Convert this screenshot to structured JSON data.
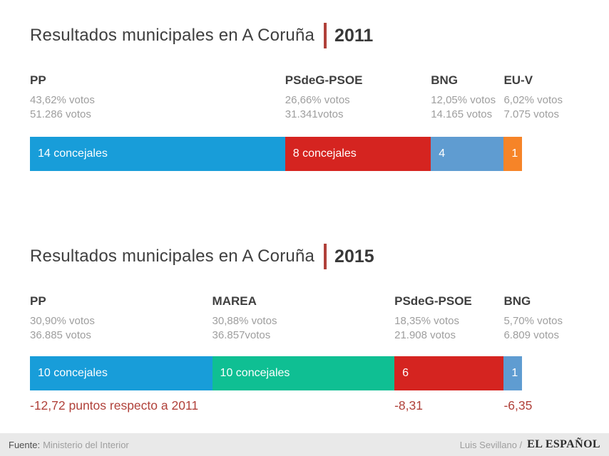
{
  "colors": {
    "pp_blue": "#189dd9",
    "psoe_red": "#d52420",
    "bng_light_blue": "#5f9cd1",
    "euv_orange": "#f68428",
    "marea_teal": "#0fbf93",
    "accent_red": "#b0413a",
    "title_gray": "#3f3f3f",
    "stat_gray": "#9e9e9e",
    "footer_bg": "#e9e9e9"
  },
  "sections": [
    {
      "title": "Resultados municipales en A Coruña",
      "year": "2011",
      "total_seats": 27,
      "parties": [
        {
          "name": "PP",
          "pct": "43,62% votos",
          "votes": "51.286 votos",
          "seats": 14,
          "bar_label": "14 concejales",
          "color": "#189dd9"
        },
        {
          "name": "PSdeG-PSOE",
          "pct": "26,66% votos",
          "votes": "31.341votos",
          "seats": 8,
          "bar_label": "8 concejales",
          "color": "#d52420"
        },
        {
          "name": "BNG",
          "pct": "12,05% votos",
          "votes": "14.165 votos",
          "seats": 4,
          "bar_label": "4",
          "color": "#5f9cd1"
        },
        {
          "name": "EU-V",
          "pct": "6,02% votos",
          "votes": "7.075 votos",
          "seats": 1,
          "bar_label": "1",
          "color": "#f68428"
        }
      ]
    },
    {
      "title": "Resultados municipales en A Coruña",
      "year": "2015",
      "total_seats": 27,
      "parties": [
        {
          "name": "PP",
          "pct": "30,90% votos",
          "votes": "36.885 votos",
          "seats": 10,
          "bar_label": "10 concejales",
          "color": "#189dd9",
          "delta": "-12,72 puntos respecto a 2011"
        },
        {
          "name": "MAREA",
          "pct": "30,88% votos",
          "votes": "36.857votos",
          "seats": 10,
          "bar_label": "10 concejales",
          "color": "#0fbf93"
        },
        {
          "name": "PSdeG-PSOE",
          "pct": "18,35% votos",
          "votes": "21.908 votos",
          "seats": 6,
          "bar_label": "6",
          "color": "#d52420",
          "delta": "-8,31"
        },
        {
          "name": "BNG",
          "pct": "5,70% votos",
          "votes": "6.809 votos",
          "seats": 1,
          "bar_label": "1",
          "color": "#5f9cd1",
          "delta": "-6,35"
        }
      ]
    }
  ],
  "footer": {
    "source_label": "Fuente:",
    "source": "Ministerio del Interior",
    "credit": "Luis Sevillano /",
    "brand": "EL ESPAÑOL"
  },
  "chart_data": [
    {
      "type": "bar",
      "subtype": "stacked-horizontal-seats",
      "title": "Resultados municipales en A Coruña 2011",
      "categories": [
        "PP",
        "PSdeG-PSOE",
        "BNG",
        "EU-V"
      ],
      "series": [
        {
          "name": "concejales",
          "values": [
            14,
            8,
            4,
            1
          ]
        },
        {
          "name": "pct_votos",
          "values": [
            43.62,
            26.66,
            12.05,
            6.02
          ]
        },
        {
          "name": "votos",
          "values": [
            51286,
            31341,
            14165,
            7075
          ]
        }
      ],
      "total_seats": 27,
      "colors": [
        "#189dd9",
        "#d52420",
        "#5f9cd1",
        "#f68428"
      ],
      "legend_position": "none",
      "grid": false
    },
    {
      "type": "bar",
      "subtype": "stacked-horizontal-seats",
      "title": "Resultados municipales en A Coruña 2015",
      "categories": [
        "PP",
        "MAREA",
        "PSdeG-PSOE",
        "BNG"
      ],
      "series": [
        {
          "name": "concejales",
          "values": [
            10,
            10,
            6,
            1
          ]
        },
        {
          "name": "pct_votos",
          "values": [
            30.9,
            30.88,
            18.35,
            5.7
          ]
        },
        {
          "name": "votos",
          "values": [
            36885,
            36857,
            21908,
            6809
          ]
        },
        {
          "name": "delta_puntos_vs_2011",
          "values": [
            -12.72,
            null,
            -8.31,
            -6.35
          ]
        }
      ],
      "total_seats": 27,
      "colors": [
        "#189dd9",
        "#0fbf93",
        "#d52420",
        "#5f9cd1"
      ],
      "legend_position": "none",
      "grid": false
    }
  ]
}
